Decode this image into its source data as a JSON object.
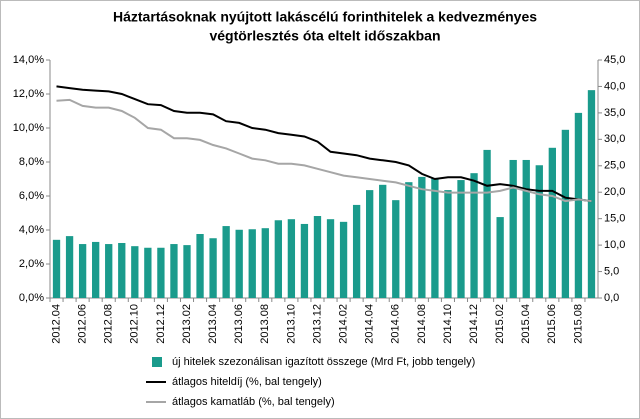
{
  "chart_data": {
    "type": "bar",
    "title": [
      "Háztartásoknak nyújtott lakáscélú forinthitelek a kedvezményes",
      "végtörlesztés óta eltelt időszakban"
    ],
    "categories": [
      "2012.04",
      null,
      "2012.06",
      null,
      "2012.08",
      null,
      "2012.10",
      null,
      "2012.12",
      null,
      "2013.02",
      null,
      "2013.04",
      null,
      "2013.06",
      null,
      "2013.08",
      null,
      "2013.10",
      null,
      "2013.12",
      null,
      "2014.02",
      null,
      "2014.04",
      null,
      "2014.06",
      null,
      "2014.08",
      null,
      "2014.10",
      null,
      "2014.12",
      null,
      "2015.02",
      null,
      "2015.04",
      null,
      "2015.06",
      null,
      "2015.08",
      null
    ],
    "series": [
      {
        "name": "új hitelek szezonálisan igazított összege (Mrd Ft, jobb tengely)",
        "type": "bar",
        "axis": "y2",
        "color": "#1a9b8c",
        "values": [
          11.0,
          11.7,
          10.2,
          10.6,
          10.2,
          10.4,
          9.8,
          9.5,
          9.5,
          10.2,
          10.0,
          12.1,
          11.3,
          13.6,
          12.9,
          13.0,
          13.2,
          14.7,
          14.9,
          14.0,
          15.5,
          14.9,
          14.4,
          17.6,
          20.4,
          21.4,
          18.5,
          21.9,
          22.9,
          22.7,
          20.4,
          22.3,
          23.6,
          28.0,
          15.3,
          26.1,
          26.1,
          25.1,
          28.4,
          31.8,
          35.0,
          39.3
        ]
      },
      {
        "name": "átlagos hiteldíj (%, bal tengely)",
        "type": "line",
        "color": "#000000",
        "values": [
          12.45,
          12.35,
          12.25,
          12.2,
          12.15,
          12.0,
          11.7,
          11.4,
          11.35,
          11.0,
          10.9,
          10.9,
          10.8,
          10.4,
          10.3,
          10.0,
          9.9,
          9.7,
          9.6,
          9.5,
          9.2,
          8.6,
          8.5,
          8.4,
          8.2,
          8.1,
          8.0,
          7.8,
          7.3,
          7.0,
          7.1,
          7.1,
          6.9,
          6.6,
          6.7,
          6.6,
          6.4,
          6.3,
          6.3,
          5.9,
          5.8,
          5.7
        ]
      },
      {
        "name": "átlagos kamatláb (%, bal tengely)",
        "type": "line",
        "color": "#a6a6a6",
        "values": [
          11.6,
          11.65,
          11.3,
          11.2,
          11.2,
          11.0,
          10.6,
          10.0,
          9.9,
          9.4,
          9.4,
          9.3,
          9.0,
          8.8,
          8.5,
          8.2,
          8.1,
          7.9,
          7.9,
          7.8,
          7.6,
          7.4,
          7.2,
          7.1,
          7.0,
          6.9,
          6.8,
          6.6,
          6.4,
          6.3,
          6.2,
          6.2,
          6.2,
          6.2,
          6.3,
          6.5,
          6.3,
          6.1,
          6.0,
          5.7,
          5.8,
          5.7
        ]
      }
    ],
    "ylim": [
      0,
      14
    ],
    "yticks": [
      {
        "value": 0,
        "label": "0,0%"
      },
      {
        "value": 2,
        "label": "2,0%"
      },
      {
        "value": 4,
        "label": "4,0%"
      },
      {
        "value": 6,
        "label": "6,0%"
      },
      {
        "value": 8,
        "label": "8,0%"
      },
      {
        "value": 10,
        "label": "10,0%"
      },
      {
        "value": 12,
        "label": "12,0%"
      },
      {
        "value": 14,
        "label": "14,0%"
      }
    ],
    "y2lim": [
      0,
      45
    ],
    "y2ticks": [
      {
        "value": 0,
        "label": "0,0"
      },
      {
        "value": 5,
        "label": "5,0"
      },
      {
        "value": 10,
        "label": "10,0"
      },
      {
        "value": 15,
        "label": "15,0"
      },
      {
        "value": 20,
        "label": "20,0"
      },
      {
        "value": 25,
        "label": "25,0"
      },
      {
        "value": 30,
        "label": "30,0"
      },
      {
        "value": 35,
        "label": "35,0"
      },
      {
        "value": 40,
        "label": "40,0"
      },
      {
        "value": 45,
        "label": "45,0"
      }
    ],
    "grid": false
  }
}
